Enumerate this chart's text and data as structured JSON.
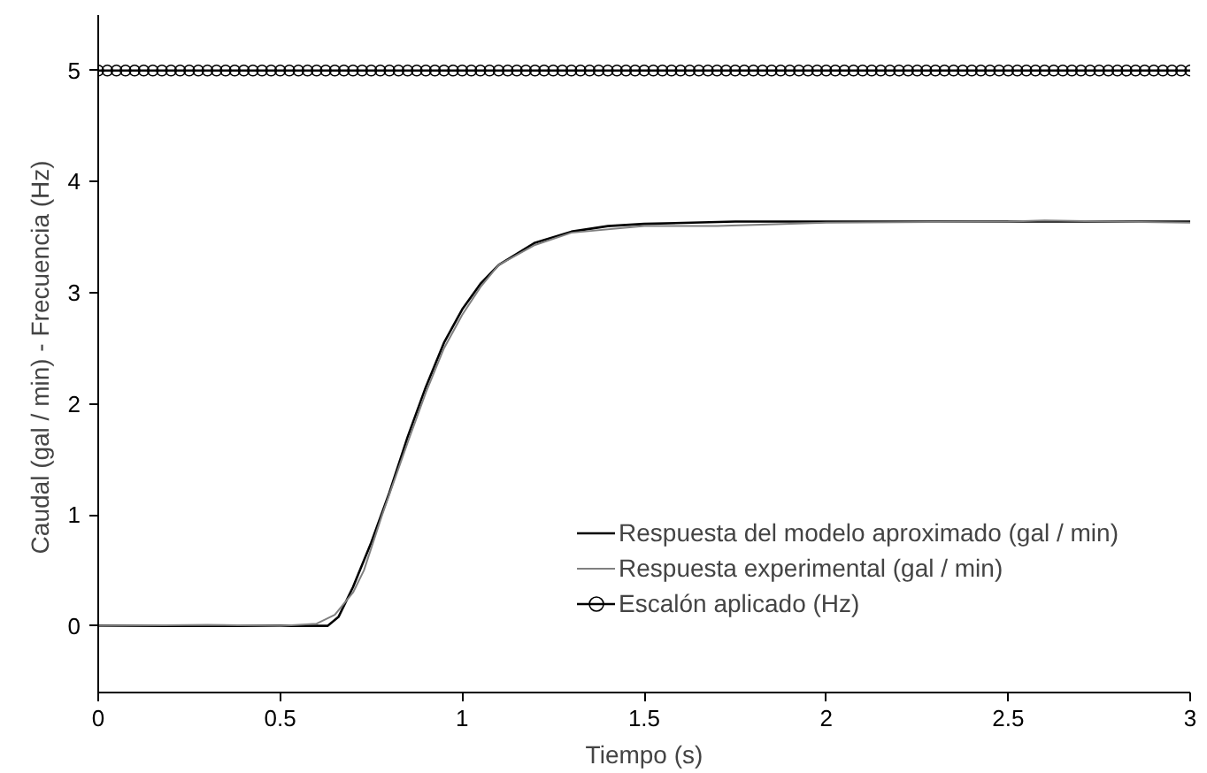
{
  "chart_data": {
    "type": "line",
    "xlabel": "Tiempo (s)",
    "ylabel": "Caudal  (gal / min) - Frecuencia (Hz)",
    "xlim": [
      0,
      3
    ],
    "xticks": [
      0,
      0.5,
      1,
      1.5,
      2,
      2.5,
      3
    ],
    "ylim": [
      -0.6,
      5.5
    ],
    "yticks": [
      0,
      1,
      2,
      3,
      4,
      5
    ],
    "grid": false,
    "legend": "bottom right",
    "series": [
      {
        "name": "Respuesta del modelo aproximado (gal / min)",
        "color": "#000000",
        "marker": "none",
        "x": [
          0,
          0.3,
          0.6,
          0.63,
          0.66,
          0.7,
          0.75,
          0.8,
          0.85,
          0.9,
          0.95,
          1.0,
          1.05,
          1.1,
          1.2,
          1.3,
          1.4,
          1.5,
          1.75,
          2,
          2.5,
          3
        ],
        "values": [
          0,
          0,
          0,
          0,
          0.08,
          0.35,
          0.75,
          1.2,
          1.7,
          2.15,
          2.55,
          2.85,
          3.08,
          3.25,
          3.45,
          3.55,
          3.6,
          3.62,
          3.64,
          3.64,
          3.64,
          3.64
        ]
      },
      {
        "name": "Respuesta experimental (gal / min)",
        "color": "#808080",
        "marker": "none",
        "x": [
          0,
          0.3,
          0.5,
          0.6,
          0.65,
          0.7,
          0.73,
          0.78,
          0.85,
          0.9,
          0.95,
          1.0,
          1.05,
          1.1,
          1.2,
          1.3,
          1.5,
          1.7,
          2,
          2.5,
          2.6,
          3
        ],
        "values": [
          0,
          0.01,
          0,
          0.02,
          0.1,
          0.3,
          0.5,
          1.0,
          1.65,
          2.1,
          2.5,
          2.8,
          3.05,
          3.25,
          3.43,
          3.54,
          3.6,
          3.6,
          3.63,
          3.64,
          3.65,
          3.63
        ]
      },
      {
        "name": "Escalón aplicado (Hz)",
        "color": "#000000",
        "marker": "circle",
        "x": [
          0,
          0.025,
          0.05,
          0.075,
          0.1,
          0.125,
          0.15,
          0.175,
          0.2,
          0.225,
          0.25,
          0.275,
          0.3,
          0.325,
          0.35,
          0.375,
          0.4,
          0.425,
          0.45,
          0.475,
          0.5,
          0.525,
          0.55,
          0.575,
          0.6,
          0.625,
          0.65,
          0.675,
          0.7,
          0.725,
          0.75,
          0.775,
          0.8,
          0.825,
          0.85,
          0.875,
          0.9,
          0.925,
          0.95,
          0.975,
          1,
          1.025,
          1.05,
          1.075,
          1.1,
          1.125,
          1.15,
          1.175,
          1.2,
          1.225,
          1.25,
          1.275,
          1.3,
          1.325,
          1.35,
          1.375,
          1.4,
          1.425,
          1.45,
          1.475,
          1.5,
          1.525,
          1.55,
          1.575,
          1.6,
          1.625,
          1.65,
          1.675,
          1.7,
          1.725,
          1.75,
          1.775,
          1.8,
          1.825,
          1.85,
          1.875,
          1.9,
          1.925,
          1.95,
          1.975,
          2,
          2.025,
          2.05,
          2.075,
          2.1,
          2.125,
          2.15,
          2.175,
          2.2,
          2.225,
          2.25,
          2.275,
          2.3,
          2.325,
          2.35,
          2.375,
          2.4,
          2.425,
          2.45,
          2.475,
          2.5,
          2.525,
          2.55,
          2.575,
          2.6,
          2.625,
          2.65,
          2.675,
          2.7,
          2.725,
          2.75,
          2.775,
          2.8,
          2.825,
          2.85,
          2.875,
          2.9,
          2.925,
          2.95,
          2.975,
          3
        ],
        "values": [
          5,
          5,
          5,
          5,
          5,
          5,
          5,
          5,
          5,
          5,
          5,
          5,
          5,
          5,
          5,
          5,
          5,
          5,
          5,
          5,
          5,
          5,
          5,
          5,
          5,
          5,
          5,
          5,
          5,
          5,
          5,
          5,
          5,
          5,
          5,
          5,
          5,
          5,
          5,
          5,
          5,
          5,
          5,
          5,
          5,
          5,
          5,
          5,
          5,
          5,
          5,
          5,
          5,
          5,
          5,
          5,
          5,
          5,
          5,
          5,
          5,
          5,
          5,
          5,
          5,
          5,
          5,
          5,
          5,
          5,
          5,
          5,
          5,
          5,
          5,
          5,
          5,
          5,
          5,
          5,
          5,
          5,
          5,
          5,
          5,
          5,
          5,
          5,
          5,
          5,
          5,
          5,
          5,
          5,
          5,
          5,
          5,
          5,
          5,
          5,
          5,
          5,
          5,
          5,
          5,
          5,
          5,
          5,
          5,
          5,
          5,
          5,
          5,
          5,
          5,
          5,
          5,
          5,
          5,
          5,
          5
        ]
      }
    ]
  }
}
